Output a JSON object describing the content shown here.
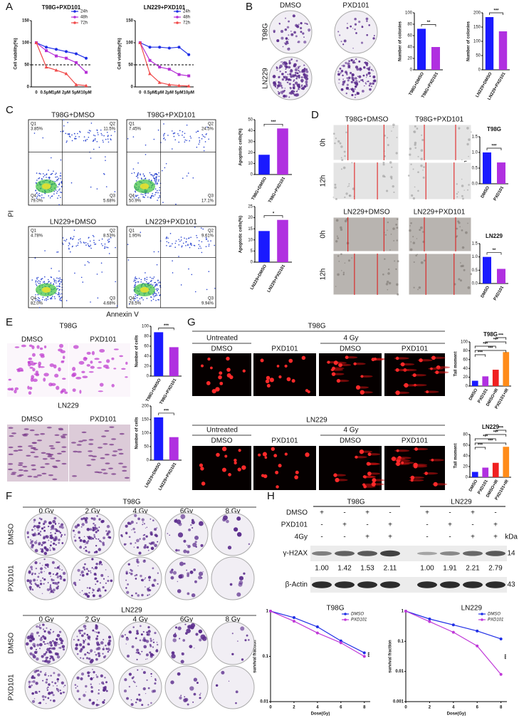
{
  "panel_labels": [
    "A",
    "B",
    "C",
    "D",
    "E",
    "F",
    "G",
    "H"
  ],
  "chart_data": [
    {
      "type": "line",
      "title": "T98G+PXD101",
      "ylabel": "Cell viability(%)",
      "categories": [
        "0",
        "0.5μM",
        "1μM",
        "2μM",
        "5μM",
        "10μM"
      ],
      "series": [
        {
          "name": "24h",
          "color": "#1f2ee6",
          "values": [
            100,
            90,
            85,
            80,
            75,
            65
          ]
        },
        {
          "name": "48h",
          "color": "#b52fd6",
          "values": [
            100,
            82,
            70,
            65,
            55,
            33
          ]
        },
        {
          "name": "72h",
          "color": "#f04a4a",
          "values": [
            100,
            45,
            38,
            30,
            5,
            3
          ]
        }
      ],
      "ylim": [
        0,
        150
      ],
      "yticks": [
        0,
        50,
        100,
        150
      ],
      "reference_line": 50,
      "legend": "upper right"
    },
    {
      "type": "line",
      "title": "LN229+PXD101",
      "ylabel": "Cell viability(%)",
      "categories": [
        "0",
        "0.5μM",
        "1μM",
        "2μM",
        "5μM",
        "10μM"
      ],
      "series": [
        {
          "name": "24h",
          "color": "#1f2ee6",
          "values": [
            100,
            90,
            90,
            88,
            90,
            73
          ]
        },
        {
          "name": "48h",
          "color": "#b52fd6",
          "values": [
            100,
            60,
            45,
            40,
            28,
            25
          ]
        },
        {
          "name": "72h",
          "color": "#f04a4a",
          "values": [
            100,
            30,
            10,
            5,
            3,
            2
          ]
        }
      ],
      "ylim": [
        0,
        150
      ],
      "yticks": [
        0,
        50,
        100,
        150
      ],
      "reference_line": 50,
      "legend": "upper right"
    },
    {
      "type": "bar",
      "ylabel": "Number of colonies",
      "categories": [
        "T98G+DMSO",
        "T98G+PXD101"
      ],
      "values": [
        72,
        40
      ],
      "colors": [
        "#1a1aff",
        "#b030e0"
      ],
      "ylim": [
        0,
        100
      ],
      "yticks": [
        0,
        20,
        40,
        60,
        80,
        100
      ],
      "significance": "**"
    },
    {
      "type": "bar",
      "ylabel": "Number of colonies",
      "categories": [
        "LN229+DMSO",
        "LN229+PXD101"
      ],
      "values": [
        185,
        135
      ],
      "colors": [
        "#1a1aff",
        "#b030e0"
      ],
      "ylim": [
        0,
        200
      ],
      "yticks": [
        0,
        50,
        100,
        150,
        200
      ],
      "significance": "***"
    },
    {
      "type": "bar",
      "ylabel": "Apoptotic cells(%)",
      "categories": [
        "T98G+DMSO",
        "T98G+PXD101"
      ],
      "values": [
        18,
        42
      ],
      "colors": [
        "#1a1aff",
        "#b030e0"
      ],
      "ylim": [
        0,
        50
      ],
      "yticks": [
        0,
        10,
        20,
        30,
        40,
        50
      ],
      "significance": "***"
    },
    {
      "type": "bar",
      "ylabel": "Apoptotic cells(%)",
      "categories": [
        "LN229+DMSO",
        "LN229+PXD101"
      ],
      "values": [
        14,
        19
      ],
      "colors": [
        "#1a1aff",
        "#b030e0"
      ],
      "ylim": [
        0,
        25
      ],
      "yticks": [
        0,
        5,
        10,
        15,
        20,
        25
      ],
      "significance": "*"
    },
    {
      "type": "bar",
      "title": "T98G",
      "ylabel": "Relative healed area",
      "categories": [
        "DMSO",
        "PXD101"
      ],
      "values": [
        1.0,
        0.68
      ],
      "colors": [
        "#1a1aff",
        "#b030e0"
      ],
      "ylim": [
        0,
        1.5
      ],
      "yticks": [
        {
          "value": 0,
          "label": "0.0"
        },
        0.5,
        {
          "value": 1,
          "label": "1.0"
        },
        1.5
      ],
      "significance": "***"
    },
    {
      "type": "bar",
      "title": "LN229",
      "ylabel": "Relative healed area",
      "categories": [
        "DMSO",
        "PXD101"
      ],
      "values": [
        1.0,
        0.55
      ],
      "colors": [
        "#1a1aff",
        "#b030e0"
      ],
      "ylim": [
        0,
        1.5
      ],
      "yticks": [
        {
          "value": 0,
          "label": "0.0"
        },
        0.5,
        {
          "value": 1,
          "label": "1.0"
        },
        1.5
      ],
      "significance": "**"
    },
    {
      "type": "bar",
      "ylabel": "Number of cells",
      "categories": [
        "T98G+DMSO",
        "T98G+PXD101"
      ],
      "values": [
        88,
        58
      ],
      "colors": [
        "#1a1aff",
        "#b030e0"
      ],
      "ylim": [
        0,
        100
      ],
      "yticks": [
        0,
        20,
        40,
        60,
        80,
        100
      ],
      "significance": "***"
    },
    {
      "type": "bar",
      "ylabel": "Number of cells",
      "categories": [
        "LN229+DMSO",
        "LN229+PXD101"
      ],
      "values": [
        158,
        85
      ],
      "colors": [
        "#1a1aff",
        "#b030e0"
      ],
      "ylim": [
        0,
        200
      ],
      "yticks": [
        0,
        50,
        100,
        150,
        200
      ],
      "significance": "***"
    },
    {
      "type": "bar",
      "title": "T98G",
      "ylabel": "Tail moment",
      "categories": [
        "DMSO",
        "PXD101",
        "DMSO+IR",
        "PXD101+IR"
      ],
      "values": [
        12,
        22,
        37,
        77
      ],
      "colors": [
        "#1a1aff",
        "#b030e0",
        "#f02020",
        "#ff8c1a"
      ],
      "ylim": [
        0,
        100
      ],
      "yticks": [
        0,
        20,
        40,
        60,
        80,
        100
      ],
      "significance": [
        "***",
        "***",
        "***",
        "***",
        "***"
      ]
    },
    {
      "type": "bar",
      "title": "LN229",
      "ylabel": "Tail moment",
      "categories": [
        "DMSO",
        "PXD101",
        "DMSO+IR",
        "PXD101+IR"
      ],
      "values": [
        10,
        18,
        27,
        57
      ],
      "colors": [
        "#1a1aff",
        "#b030e0",
        "#f02020",
        "#ff8c1a"
      ],
      "ylim": [
        0,
        80
      ],
      "yticks": [
        0,
        20,
        40,
        60,
        80
      ],
      "significance": [
        "***",
        "***",
        "***",
        "***",
        "***"
      ]
    },
    {
      "type": "line",
      "title": "T98G",
      "xlabel": "Dose(Gy)",
      "ylabel": "survival fraction",
      "x": [
        0,
        2,
        4,
        6,
        8
      ],
      "series": [
        {
          "name": "DMSO",
          "color": "#1f2ee6",
          "values": [
            1,
            0.72,
            0.45,
            0.22,
            0.12
          ]
        },
        {
          "name": "PXD101",
          "color": "#c03ad8",
          "values": [
            1,
            0.6,
            0.33,
            0.2,
            0.1
          ]
        }
      ],
      "xlim": [
        0,
        8.5
      ],
      "xticks": [
        0,
        2,
        4,
        6,
        8
      ],
      "ylim": [
        0.01,
        1
      ],
      "yticks": [
        0.01,
        0.1,
        1
      ],
      "log_y": true,
      "legend": "upper right",
      "significance": "***"
    },
    {
      "type": "line",
      "title": "LN229",
      "xlabel": "Dose(Gy)",
      "ylabel": "survival fraction",
      "x": [
        0,
        2,
        4,
        6,
        8
      ],
      "series": [
        {
          "name": "DMSO",
          "color": "#1f2ee6",
          "values": [
            1,
            0.55,
            0.35,
            0.22,
            0.12
          ]
        },
        {
          "name": "PXD101",
          "color": "#c03ad8",
          "values": [
            1,
            0.45,
            0.2,
            0.07,
            0.008
          ]
        }
      ],
      "xlim": [
        0,
        8.5
      ],
      "xticks": [
        0,
        2,
        4,
        6,
        8
      ],
      "ylim": [
        0.001,
        1
      ],
      "yticks": [
        0.001,
        0.01,
        0.1,
        1
      ],
      "log_y": true,
      "legend": "upper right",
      "significance": "***"
    }
  ],
  "colony_b": {
    "columns": [
      "DMSO",
      "PXD101"
    ],
    "rows": [
      "T98G",
      "LN229"
    ]
  },
  "flow_c": {
    "y_label": "PI",
    "x_label": "Annexin V",
    "plots": [
      {
        "title": "T98G+DMSO",
        "quadrants": [
          {
            "name": "Q1",
            "value": "3.85%"
          },
          {
            "name": "Q2",
            "value": "11.5%"
          },
          {
            "name": "Q4",
            "value": "79.0%"
          },
          {
            "name": "Q3",
            "value": "5.68%"
          }
        ]
      },
      {
        "title": "T98G+PXD101",
        "quadrants": [
          {
            "name": "Q1",
            "value": "7.45%"
          },
          {
            "name": "Q2",
            "value": "24.5%"
          },
          {
            "name": "Q4",
            "value": "50.9%"
          },
          {
            "name": "Q3",
            "value": "17.1%"
          }
        ]
      },
      {
        "title": "LN229+DMSO",
        "quadrants": [
          {
            "name": "Q1",
            "value": "4.78%"
          },
          {
            "name": "Q2",
            "value": "8.53%"
          },
          {
            "name": "Q4",
            "value": "82.0%"
          },
          {
            "name": "Q3",
            "value": "4.68%"
          }
        ]
      },
      {
        "title": "LN229+PXD101",
        "quadrants": [
          {
            "name": "Q1",
            "value": "1.95%"
          },
          {
            "name": "Q2",
            "value": "9.61%"
          },
          {
            "name": "Q4",
            "value": "78.5%"
          },
          {
            "name": "Q3",
            "value": "9.94%"
          }
        ]
      }
    ]
  },
  "wound_d": {
    "groups": [
      {
        "columns": [
          "T98G+DMSO",
          "T98G+PXD101"
        ],
        "rows": [
          "0h",
          "12h"
        ]
      },
      {
        "columns": [
          "LN229+DMSO",
          "LN229+PXD101"
        ],
        "rows": [
          "0h",
          "12h"
        ]
      }
    ]
  },
  "transwell_e": {
    "groups": [
      {
        "title": "T98G",
        "columns": [
          "DMSO",
          "PXD101"
        ]
      },
      {
        "title": "LN229",
        "columns": [
          "DMSO",
          "PXD101"
        ]
      }
    ]
  },
  "comet_g": {
    "groups": [
      {
        "title": "T98G",
        "conditions": [
          "Untreated",
          "4 Gy"
        ],
        "columns": [
          "DMSO",
          "PXD101",
          "DMSO",
          "PXD101"
        ]
      },
      {
        "title": "LN229",
        "conditions": [
          "Untreated",
          "4 Gy"
        ],
        "columns": [
          "DMSO",
          "PXD101",
          "DMSO",
          "PXD101"
        ]
      }
    ]
  },
  "colony_f": {
    "groups": [
      {
        "title": "T98G",
        "doses": [
          "0 Gy",
          "2 Gy",
          "4 Gy",
          "6Gy",
          "8 Gy"
        ],
        "rows": [
          "DMSO",
          "PXD101"
        ]
      },
      {
        "title": "LN229",
        "doses": [
          "0 Gy",
          "2 Gy",
          "4 Gy",
          "6Gy",
          "8 Gy"
        ],
        "rows": [
          "DMSO",
          "PXD101"
        ]
      }
    ]
  },
  "western_h": {
    "groups": [
      "T98G",
      "LN229"
    ],
    "treatments": [
      {
        "name": "DMSO",
        "signs": [
          "+",
          "-",
          "+",
          "-",
          "+",
          "-",
          "+",
          "-"
        ]
      },
      {
        "name": "PXD101",
        "signs": [
          "-",
          "+",
          "-",
          "+",
          "-",
          "+",
          "-",
          "+"
        ]
      },
      {
        "name": "4Gy",
        "signs": [
          "-",
          "-",
          "+",
          "+",
          "-",
          "-",
          "+",
          "+"
        ]
      }
    ],
    "kda_label": "kDa",
    "bands": [
      {
        "name": "γ-H2AX",
        "kda": "14"
      },
      {
        "name": "β-Actin",
        "kda": "43"
      }
    ],
    "quantification": [
      "1.00",
      "1.42",
      "1.53",
      "2.11",
      "1.00",
      "1.91",
      "2.21",
      "2.79"
    ]
  }
}
